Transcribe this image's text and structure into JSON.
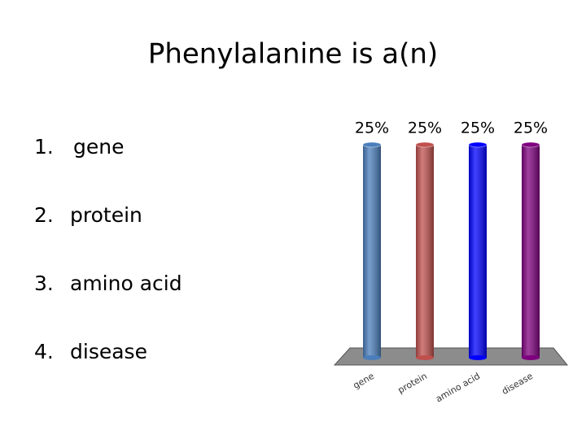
{
  "slide_title": "Phenylalanine is a(n)",
  "options": [
    {
      "number": "1.",
      "text": "gene"
    },
    {
      "number": "2.",
      "text": "protein"
    },
    {
      "number": "3.",
      "text": "amino acid"
    },
    {
      "number": "4.",
      "text": "disease"
    }
  ],
  "chart_data": {
    "type": "bar",
    "categories": [
      "gene",
      "protein",
      "amino acid",
      "disease"
    ],
    "values": [
      25,
      25,
      25,
      25
    ],
    "value_labels": [
      "25%",
      "25%",
      "25%",
      "25%"
    ],
    "colors": [
      "#4a7ebb",
      "#c0504d",
      "#0000ff",
      "#7f007f"
    ]
  }
}
